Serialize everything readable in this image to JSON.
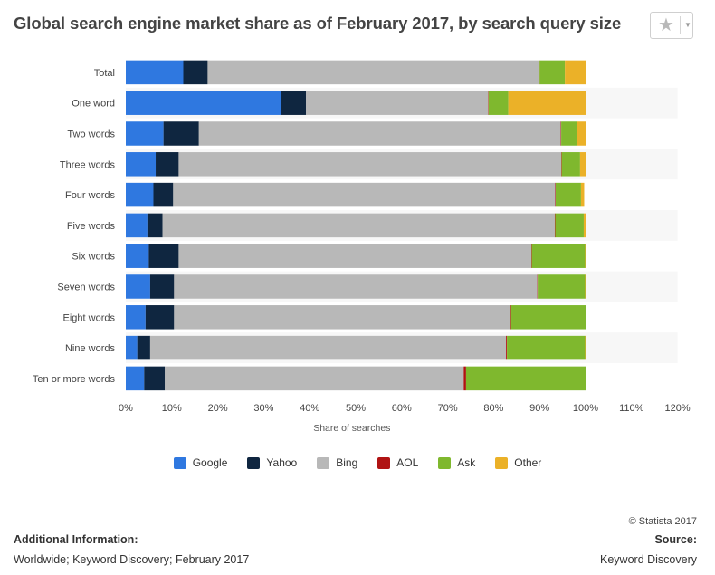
{
  "header": {
    "title": "Global search engine market share as of February 2017, by search query size",
    "star_icon": "star-icon",
    "caret_icon": "chevron-down-icon"
  },
  "chart_data": {
    "type": "bar",
    "orientation": "horizontal",
    "stacked": true,
    "title": "Global search engine market share as of February 2017, by search query size",
    "xlabel": "Share of searches",
    "ylabel": "",
    "xlim": [
      0,
      120
    ],
    "x_tick_labels": [
      "0%",
      "10%",
      "20%",
      "30%",
      "40%",
      "50%",
      "60%",
      "70%",
      "80%",
      "90%",
      "100%",
      "110%",
      "120%"
    ],
    "grid": false,
    "legend_position": "bottom",
    "categories": [
      "Total",
      "One word",
      "Two words",
      "Three words",
      "Four words",
      "Five words",
      "Six words",
      "Seven words",
      "Eight words",
      "Nine words",
      "Ten or more words"
    ],
    "series": [
      {
        "name": "Google",
        "color": "#2f78e0",
        "values": [
          12.5,
          33.7,
          8.2,
          6.5,
          6.0,
          4.7,
          5.0,
          5.3,
          4.3,
          2.5,
          4.0
        ]
      },
      {
        "name": "Yahoo",
        "color": "#0f2640",
        "values": [
          5.3,
          5.5,
          7.7,
          5.0,
          4.3,
          3.3,
          6.5,
          5.2,
          6.2,
          2.8,
          4.5
        ]
      },
      {
        "name": "Bing",
        "color": "#b8b8b8",
        "values": [
          72.1,
          39.6,
          78.7,
          83.2,
          83.1,
          85.3,
          76.7,
          79.0,
          73.0,
          77.4,
          65.0
        ]
      },
      {
        "name": "AOL",
        "color": "#b01313",
        "values": [
          0.1,
          0.1,
          0.1,
          0.1,
          0.1,
          0.1,
          0.1,
          0.1,
          0.3,
          0.2,
          0.5
        ]
      },
      {
        "name": "Ask",
        "color": "#7fb82e",
        "values": [
          5.5,
          4.3,
          3.5,
          4.0,
          5.5,
          6.2,
          11.6,
          10.3,
          16.2,
          17.0,
          26.0
        ]
      },
      {
        "name": "Other",
        "color": "#ebb128",
        "values": [
          4.5,
          16.8,
          1.8,
          1.2,
          0.7,
          0.4,
          0.1,
          0.1,
          0.0,
          0.1,
          0.0
        ]
      }
    ]
  },
  "footer": {
    "copyright": "© Statista 2017",
    "additional_info_label": "Additional Information:",
    "additional_info_text": "Worldwide; Keyword Discovery; February 2017",
    "source_label": "Source:",
    "source_text": "Keyword Discovery"
  }
}
